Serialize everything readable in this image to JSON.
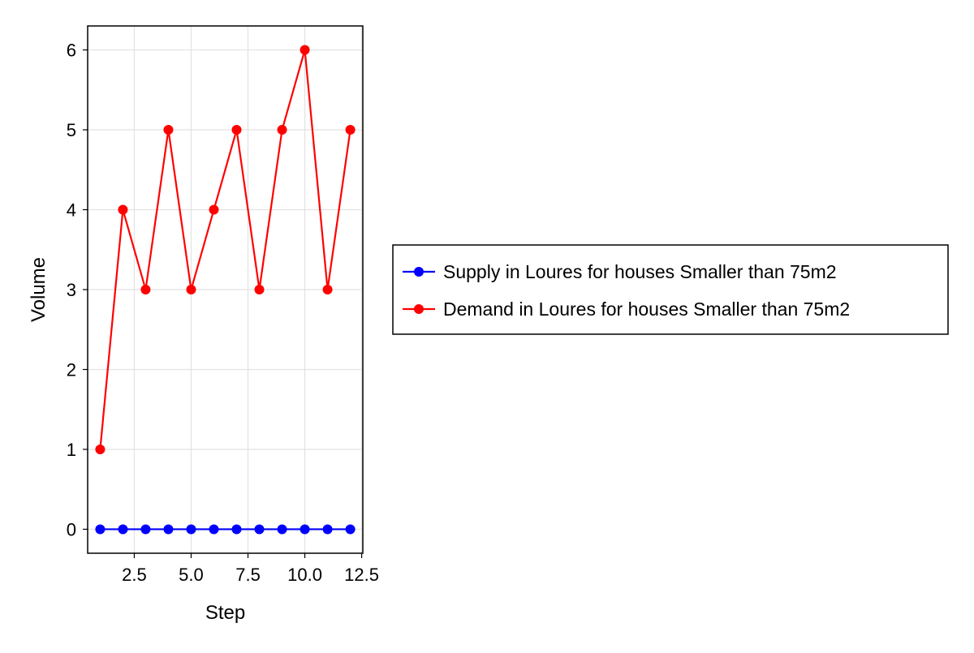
{
  "chart_data": {
    "type": "line",
    "title": "",
    "xlabel": "Step",
    "ylabel": "Volume",
    "xlim": [
      0.45,
      12.55
    ],
    "ylim": [
      -0.3,
      6.3
    ],
    "x_ticks": [
      2.5,
      5.0,
      7.5,
      10.0,
      12.5
    ],
    "x_tick_labels": [
      "2.5",
      "5.0",
      "7.5",
      "10.0",
      "12.5"
    ],
    "y_ticks": [
      0,
      1,
      2,
      3,
      4,
      5,
      6
    ],
    "y_tick_labels": [
      "0",
      "1",
      "2",
      "3",
      "4",
      "5",
      "6"
    ],
    "grid": true,
    "legend_position": "right",
    "x": [
      1,
      2,
      3,
      4,
      5,
      6,
      7,
      8,
      9,
      10,
      11,
      12
    ],
    "series": [
      {
        "name": "Supply in Loures for houses Smaller than 75m2",
        "color": "#0000ff",
        "marker": "circle",
        "values": [
          0,
          0,
          0,
          0,
          0,
          0,
          0,
          0,
          0,
          0,
          0,
          0
        ]
      },
      {
        "name": "Demand in Loures for houses Smaller than 75m2",
        "color": "#ff0000",
        "marker": "circle",
        "values": [
          1,
          4,
          3,
          5,
          3,
          4,
          5,
          3,
          5,
          6,
          3,
          5
        ]
      }
    ]
  }
}
